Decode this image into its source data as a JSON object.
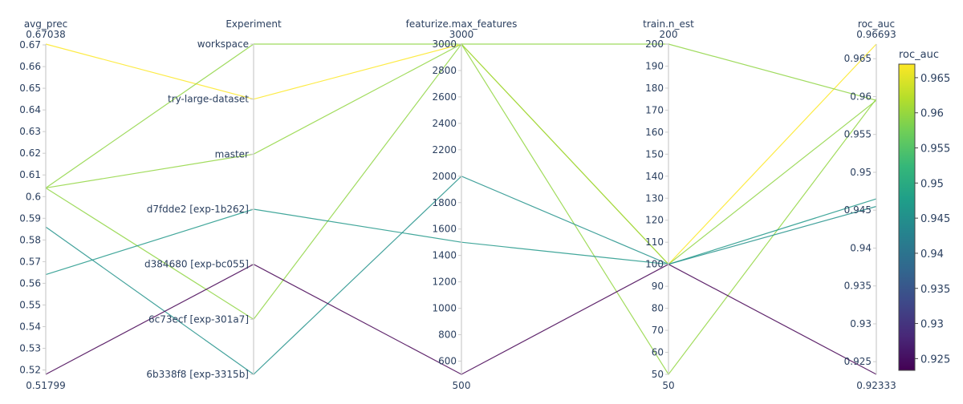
{
  "chart_data": {
    "type": "parallel_coordinates",
    "dimensions": [
      {
        "label": "avg_prec",
        "kind": "numeric",
        "range": [
          0.51799,
          0.67038
        ],
        "range_labels": [
          "0.51799",
          "0.67038"
        ],
        "ticks": [
          0.52,
          0.53,
          0.54,
          0.55,
          0.56,
          0.57,
          0.58,
          0.59,
          0.6,
          0.61,
          0.62,
          0.63,
          0.64,
          0.65,
          0.66,
          0.67
        ],
        "tick_labels": [
          "0.52",
          "0.53",
          "0.54",
          "0.55",
          "0.56",
          "0.57",
          "0.58",
          "0.59",
          "0.6",
          "0.61",
          "0.62",
          "0.63",
          "0.64",
          "0.65",
          "0.66",
          "0.67"
        ]
      },
      {
        "label": "Experiment",
        "kind": "categorical",
        "categories": [
          "6b338f8 [exp-3315b]",
          "6c73ecf [exp-301a7]",
          "d384680 [exp-bc055]",
          "d7fdde2 [exp-1b262]",
          "master",
          "try-large-dataset",
          "workspace"
        ]
      },
      {
        "label": "featurize.max_features",
        "kind": "numeric",
        "range": [
          500,
          3000
        ],
        "range_labels": [
          "500",
          "3000"
        ],
        "ticks": [
          600,
          800,
          1000,
          1200,
          1400,
          1600,
          1800,
          2000,
          2200,
          2400,
          2600,
          2800,
          3000
        ],
        "tick_labels": [
          "600",
          "800",
          "1000",
          "1200",
          "1400",
          "1600",
          "1800",
          "2000",
          "2200",
          "2400",
          "2600",
          "2800",
          "3000"
        ]
      },
      {
        "label": "train.n_est",
        "kind": "numeric",
        "range": [
          50,
          200
        ],
        "range_labels": [
          "50",
          "200"
        ],
        "ticks": [
          50,
          60,
          70,
          80,
          90,
          100,
          110,
          120,
          130,
          140,
          150,
          160,
          170,
          180,
          190,
          200
        ],
        "tick_labels": [
          "50",
          "60",
          "70",
          "80",
          "90",
          "100",
          "110",
          "120",
          "130",
          "140",
          "150",
          "160",
          "170",
          "180",
          "190",
          "200"
        ]
      },
      {
        "label": "roc_auc",
        "kind": "numeric",
        "range": [
          0.92333,
          0.96693
        ],
        "range_labels": [
          "0.92333",
          "0.96693"
        ],
        "ticks": [
          0.925,
          0.93,
          0.935,
          0.94,
          0.945,
          0.95,
          0.955,
          0.96,
          0.965
        ],
        "tick_labels": [
          "0.925",
          "0.93",
          "0.935",
          "0.94",
          "0.945",
          "0.95",
          "0.955",
          "0.96",
          "0.965"
        ]
      }
    ],
    "lines": [
      {
        "avg_prec": 0.67038,
        "Experiment": "try-large-dataset",
        "featurize.max_features": 3000,
        "train.n_est": 100,
        "roc_auc": 0.96693
      },
      {
        "avg_prec": 0.604,
        "Experiment": "workspace",
        "featurize.max_features": 3000,
        "train.n_est": 200,
        "roc_auc": 0.9595
      },
      {
        "avg_prec": 0.604,
        "Experiment": "master",
        "featurize.max_features": 3000,
        "train.n_est": 50,
        "roc_auc": 0.9597
      },
      {
        "avg_prec": 0.604,
        "Experiment": "6c73ecf [exp-301a7]",
        "featurize.max_features": 3000,
        "train.n_est": 100,
        "roc_auc": 0.9595
      },
      {
        "avg_prec": 0.564,
        "Experiment": "d7fdde2 [exp-1b262]",
        "featurize.max_features": 1500,
        "train.n_est": 100,
        "roc_auc": 0.9465
      },
      {
        "avg_prec": 0.586,
        "Experiment": "6b338f8 [exp-3315b]",
        "featurize.max_features": 2000,
        "train.n_est": 100,
        "roc_auc": 0.9455
      },
      {
        "avg_prec": 0.51799,
        "Experiment": "d384680 [exp-bc055]",
        "featurize.max_features": 500,
        "train.n_est": 100,
        "roc_auc": 0.92333
      }
    ],
    "color_dimension": "roc_auc",
    "colorscale": "viridis",
    "colorbar": {
      "title": "roc_auc",
      "range": [
        0.92333,
        0.96693
      ],
      "ticks": [
        0.925,
        0.93,
        0.935,
        0.94,
        0.945,
        0.95,
        0.955,
        0.96,
        0.965
      ],
      "tick_labels": [
        "0.925",
        "0.93",
        "0.935",
        "0.94",
        "0.945",
        "0.95",
        "0.955",
        "0.96",
        "0.965"
      ]
    }
  },
  "colors": {
    "text": "#2a3f5f",
    "axis": "#cccccc",
    "viridis": [
      "#440154",
      "#482878",
      "#3e4989",
      "#31688e",
      "#26828e",
      "#1f9e89",
      "#35b779",
      "#6ece58",
      "#b5de2b",
      "#fde725"
    ]
  }
}
